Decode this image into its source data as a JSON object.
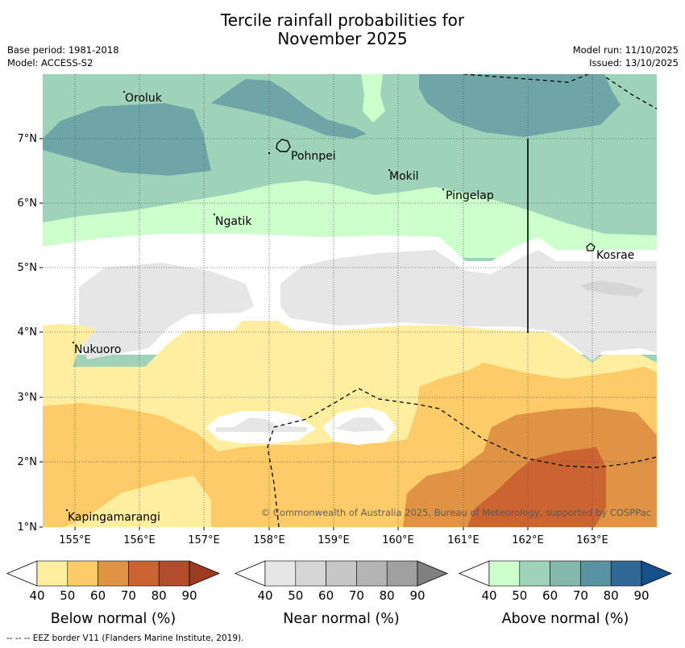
{
  "title_line1": "Tercile rainfall probabilities for",
  "title_line2": "November 2025",
  "base_period": "Base period: 1981-2018",
  "model": "Model: ACCESS-S2",
  "model_run": "Model run: 11/10/2025",
  "issued": "Issued: 13/10/2025",
  "copyright": "© Commonwealth of Australia 2025, Bureau of Meteorology, supported by COSPPac",
  "footer": "--  --  -- EEZ border V11 (Flanders Marine Institute, 2019).",
  "map": {
    "lon_range": [
      154.5,
      164.0
    ],
    "lat_range": [
      1.0,
      8.0
    ],
    "lon_ticks": [
      "155°E",
      "156°E",
      "157°E",
      "158°E",
      "159°E",
      "160°E",
      "161°E",
      "162°E",
      "163°E"
    ],
    "lat_ticks": [
      "1°N",
      "2°N",
      "3°N",
      "4°N",
      "5°N",
      "6°N",
      "7°N"
    ],
    "places": [
      "Oroluk",
      "Pohnpei",
      "Mokil",
      "Pingelap",
      "Ngatik",
      "Kosrae",
      "Nukuoro",
      "Kapingamarangi"
    ]
  },
  "colorbars": [
    {
      "label": "Below normal (%)",
      "ticks": [
        "40",
        "50",
        "60",
        "70",
        "80",
        "90"
      ],
      "colors": [
        "#ffffff",
        "#ffeea0",
        "#fdcb67",
        "#e09245",
        "#cc6432",
        "#b24d2b",
        "#9c3a22"
      ]
    },
    {
      "label": "Near normal (%)",
      "ticks": [
        "40",
        "50",
        "60",
        "70",
        "80",
        "90"
      ],
      "colors": [
        "#ffffff",
        "#e6e6e6",
        "#d6d6d6",
        "#c6c6c6",
        "#b4b4b4",
        "#a0a0a0",
        "#808080"
      ]
    },
    {
      "label": "Above normal (%)",
      "ticks": [
        "40",
        "50",
        "60",
        "70",
        "80",
        "90"
      ],
      "colors": [
        "#ffffff",
        "#ccffcc",
        "#9fd3b9",
        "#84b8ad",
        "#5893a2",
        "#306898",
        "#17508a"
      ]
    }
  ],
  "colors": {
    "above_50": "#ccffcc",
    "above_60": "#9fd3b9",
    "above_70": "#6ea6a8",
    "near_50": "#e6e6e6",
    "below_50": "#ffeea0",
    "below_60": "#fdcb67",
    "below_70": "#e09245",
    "below_80": "#cc6432"
  }
}
